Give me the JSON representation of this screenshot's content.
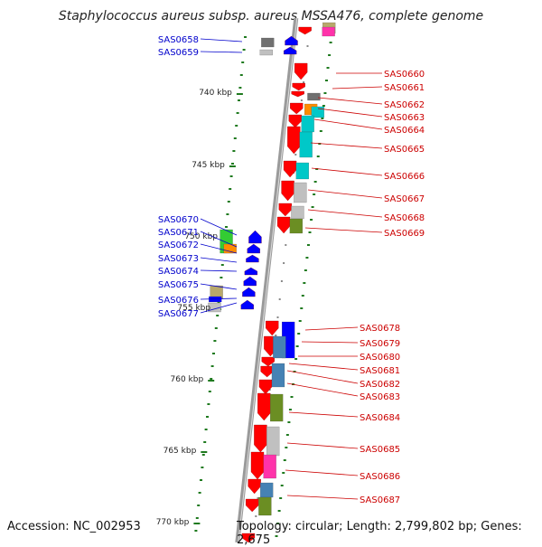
{
  "title": "Staphylococcus aureus subsp. aureus MSSA476, complete genome",
  "accession": "Accession: NC_002953",
  "topology": "Topology: circular; Length: 2,799,802 bp; Genes: 2,675",
  "kbp_labels": [
    "740 kbp",
    "745 kbp",
    "750 kbp",
    "755 kbp",
    "760 kbp",
    "765 kbp",
    "770 kbp"
  ],
  "left_genes": [
    "SAS0658",
    "SAS0659",
    "SAS0670",
    "SAS0671",
    "SAS0672",
    "SAS0673",
    "SAS0674",
    "SAS0675",
    "SAS0676",
    "SAS0677"
  ],
  "right_genes": [
    "SAS0660",
    "SAS0661",
    "SAS0662",
    "SAS0663",
    "SAS0664",
    "SAS0665",
    "SAS0666",
    "SAS0667",
    "SAS0668",
    "SAS0669",
    "SAS0678",
    "SAS0679",
    "SAS0680",
    "SAS0681",
    "SAS0682",
    "SAS0683",
    "SAS0684",
    "SAS0685",
    "SAS0686",
    "SAS0687"
  ],
  "colors": {
    "forward_strand": "#ff0000",
    "reverse_strand": "#0000ff",
    "backbone": "#9a9a9a",
    "kbp_tick": "#1f7a1f",
    "left_label": "#0000cc",
    "right_label": "#cc0000",
    "cog_cyan": "#00c8c8",
    "cog_gray": "#c0c0c0",
    "cog_olive": "#6b8e23",
    "cog_pink": "#ff33aa",
    "cog_steel": "#4682b4",
    "cog_blue": "#0000ff",
    "cog_orange": "#ff8c00",
    "cog_green": "#33cc33",
    "cog_khaki": "#b8a86a",
    "cog_darkgray": "#707070"
  }
}
